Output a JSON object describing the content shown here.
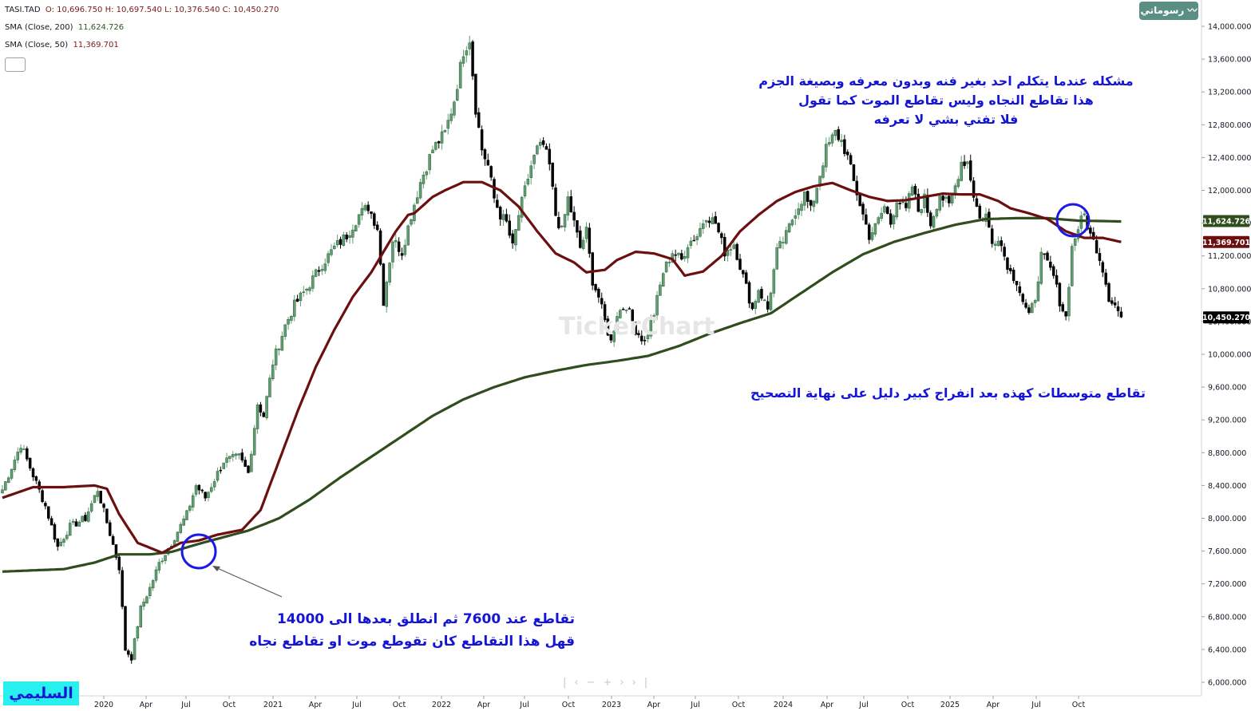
{
  "header": {
    "symbol": "TASI.TAD",
    "ohlc": "O: 10,696.750 H: 10,697.540 L: 10,376.540 C: 10,450.270",
    "sma200_label": "SMA (Close, 200)",
    "sma200_value": "11,624.726",
    "sma50_label": "SMA (Close, 50)",
    "sma50_value": "11,369.701"
  },
  "brand": "رسوماتي",
  "annotations": {
    "top_line1": "مشكله عندما يتكلم احد بغير فنه وبدون معرفه وبصيغة الجزم",
    "top_line2": "هذا تقاطع النجاه وليس تقاطع الموت كما تقول",
    "top_line3": "فلا تفتي بشي لا تعرفه",
    "middle": "تقاطع متوسطات كهذه بعد انفراج كبير دليل على نهاية التصحيح",
    "bottom_line1": "تقاطع عند 7600 ثم انطلق بعدها الى 14000",
    "bottom_line2": "قهل هذا التقاطع كان تقوطع موت او تقاطع نجاه"
  },
  "signature": "السليمي",
  "watermark": "TickerChart",
  "colors": {
    "up": "#5f9f72",
    "down": "#000000",
    "sma200": "#2f4d1d",
    "sma50": "#6b0f0f",
    "circle": "#1a1ae6",
    "text": "#1515d6",
    "last_price_tag": "#000000",
    "sma200_tag": "#2f4d1d",
    "sma50_tag": "#6b0f0f"
  },
  "chart_data": {
    "type": "candlestick",
    "ylim": [
      5900,
      14100
    ],
    "y_ticks": [
      "6,000.000",
      "6,400.000",
      "6,800.000",
      "7,200.000",
      "7,600.000",
      "8,000.000",
      "8,400.000",
      "8,800.000",
      "9,200.000",
      "9,600.000",
      "10,000.000",
      "10,400.000",
      "10,800.000",
      "11,200.000",
      "11,600.000",
      "12,000.000",
      "12,400.000",
      "12,800.000",
      "13,200.000",
      "13,600.000",
      "14,000.000"
    ],
    "x_ticks": [
      "2020",
      "Apr",
      "Jul",
      "Oct",
      "2021",
      "Apr",
      "Jul",
      "Oct",
      "2022",
      "Apr",
      "Jul",
      "Oct",
      "2023",
      "Apr",
      "Jul",
      "Oct",
      "2024",
      "Apr",
      "Jul",
      "Oct",
      "2025",
      "Apr",
      "Jul",
      "Oct"
    ],
    "price_tags": [
      {
        "label": "11,624.726",
        "value": 11624.726,
        "series": "SMA (Close, 200)"
      },
      {
        "label": "11,369.701",
        "value": 11369.701,
        "series": "SMA (Close, 50)"
      },
      {
        "label": "10,450.270",
        "value": 10450.27,
        "series": "TASI.TAD"
      }
    ],
    "close_anchors": [
      [
        0,
        8350
      ],
      [
        6,
        8900
      ],
      [
        14,
        8150
      ],
      [
        18,
        7650
      ],
      [
        22,
        7900
      ],
      [
        27,
        8000
      ],
      [
        31,
        8350
      ],
      [
        34,
        7950
      ],
      [
        38,
        7400
      ],
      [
        40,
        6400
      ],
      [
        42,
        6300
      ],
      [
        45,
        6900
      ],
      [
        48,
        7150
      ],
      [
        51,
        7450
      ],
      [
        55,
        7700
      ],
      [
        60,
        8050
      ],
      [
        63,
        8400
      ],
      [
        66,
        8250
      ],
      [
        72,
        8700
      ],
      [
        77,
        8750
      ],
      [
        80,
        8550
      ],
      [
        83,
        9400
      ],
      [
        85,
        9250
      ],
      [
        88,
        9900
      ],
      [
        92,
        10350
      ],
      [
        95,
        10600
      ],
      [
        99,
        10800
      ],
      [
        104,
        11100
      ],
      [
        108,
        11300
      ],
      [
        112,
        11450
      ],
      [
        116,
        11700
      ],
      [
        119,
        11800
      ],
      [
        122,
        11550
      ],
      [
        124,
        10650
      ],
      [
        127,
        11400
      ],
      [
        130,
        11250
      ],
      [
        133,
        11700
      ],
      [
        136,
        12100
      ],
      [
        140,
        12500
      ],
      [
        144,
        12700
      ],
      [
        147,
        13100
      ],
      [
        150,
        13700
      ],
      [
        152,
        13850
      ],
      [
        154,
        13000
      ],
      [
        156,
        12500
      ],
      [
        158,
        12300
      ],
      [
        160,
        11900
      ],
      [
        162,
        11700
      ],
      [
        164,
        11600
      ],
      [
        166,
        11300
      ],
      [
        168,
        11700
      ],
      [
        170,
        12000
      ],
      [
        172,
        12300
      ],
      [
        174,
        12500
      ],
      [
        176,
        12550
      ],
      [
        178,
        12300
      ],
      [
        180,
        11700
      ],
      [
        182,
        11500
      ],
      [
        184,
        11900
      ],
      [
        186,
        11600
      ],
      [
        188,
        11300
      ],
      [
        190,
        11500
      ],
      [
        192,
        10900
      ],
      [
        194,
        10700
      ],
      [
        196,
        10400
      ],
      [
        198,
        10150
      ],
      [
        200,
        10500
      ],
      [
        203,
        10600
      ],
      [
        206,
        10300
      ],
      [
        209,
        10150
      ],
      [
        212,
        10500
      ],
      [
        215,
        11000
      ],
      [
        218,
        11250
      ],
      [
        221,
        11150
      ],
      [
        223,
        11350
      ],
      [
        226,
        11450
      ],
      [
        229,
        11700
      ],
      [
        232,
        11600
      ],
      [
        235,
        11250
      ],
      [
        238,
        11350
      ],
      [
        241,
        10950
      ],
      [
        244,
        10550
      ],
      [
        246,
        10800
      ],
      [
        249,
        10550
      ],
      [
        252,
        11250
      ],
      [
        255,
        11450
      ],
      [
        258,
        11750
      ],
      [
        261,
        11950
      ],
      [
        263,
        11750
      ],
      [
        265,
        12050
      ],
      [
        268,
        12500
      ],
      [
        271,
        12700
      ],
      [
        273,
        12600
      ],
      [
        275,
        12400
      ],
      [
        277,
        12100
      ],
      [
        280,
        11700
      ],
      [
        282,
        11450
      ],
      [
        284,
        11550
      ],
      [
        287,
        11800
      ],
      [
        289,
        11600
      ],
      [
        291,
        11900
      ],
      [
        294,
        11750
      ],
      [
        296,
        12050
      ],
      [
        298,
        11750
      ],
      [
        300,
        11900
      ],
      [
        302,
        11600
      ],
      [
        305,
        11950
      ],
      [
        308,
        11800
      ],
      [
        310,
        12050
      ],
      [
        312,
        12350
      ],
      [
        314,
        12350
      ],
      [
        316,
        11950
      ],
      [
        318,
        11650
      ],
      [
        320,
        11700
      ],
      [
        322,
        11350
      ],
      [
        324,
        11450
      ],
      [
        326,
        11200
      ],
      [
        328,
        11000
      ],
      [
        330,
        10900
      ],
      [
        332,
        10650
      ],
      [
        334,
        10450
      ],
      [
        336,
        10700
      ],
      [
        338,
        11200
      ],
      [
        340,
        11100
      ],
      [
        342,
        10950
      ],
      [
        344,
        10650
      ],
      [
        346,
        10450
      ],
      [
        348,
        11300
      ],
      [
        350,
        11550
      ],
      [
        352,
        11700
      ],
      [
        354,
        11450
      ],
      [
        356,
        11300
      ],
      [
        358,
        11050
      ],
      [
        360,
        10700
      ],
      [
        362,
        10600
      ],
      [
        364,
        10450
      ]
    ],
    "sma200_anchors": [
      [
        0,
        7350
      ],
      [
        20,
        7380
      ],
      [
        30,
        7460
      ],
      [
        38,
        7560
      ],
      [
        48,
        7560
      ],
      [
        55,
        7590
      ],
      [
        65,
        7700
      ],
      [
        80,
        7850
      ],
      [
        90,
        8000
      ],
      [
        100,
        8230
      ],
      [
        110,
        8500
      ],
      [
        120,
        8750
      ],
      [
        130,
        9000
      ],
      [
        140,
        9250
      ],
      [
        150,
        9450
      ],
      [
        160,
        9600
      ],
      [
        170,
        9720
      ],
      [
        180,
        9800
      ],
      [
        190,
        9870
      ],
      [
        200,
        9920
      ],
      [
        210,
        9980
      ],
      [
        220,
        10100
      ],
      [
        230,
        10250
      ],
      [
        240,
        10380
      ],
      [
        250,
        10500
      ],
      [
        260,
        10750
      ],
      [
        270,
        11000
      ],
      [
        280,
        11220
      ],
      [
        290,
        11370
      ],
      [
        300,
        11480
      ],
      [
        310,
        11580
      ],
      [
        320,
        11650
      ],
      [
        330,
        11660
      ],
      [
        340,
        11660
      ],
      [
        350,
        11630
      ],
      [
        358,
        11625
      ],
      [
        364,
        11620
      ]
    ],
    "sma50_anchors": [
      [
        0,
        8250
      ],
      [
        10,
        8380
      ],
      [
        20,
        8380
      ],
      [
        30,
        8400
      ],
      [
        34,
        8360
      ],
      [
        38,
        8050
      ],
      [
        44,
        7700
      ],
      [
        52,
        7580
      ],
      [
        58,
        7700
      ],
      [
        64,
        7730
      ],
      [
        70,
        7800
      ],
      [
        78,
        7860
      ],
      [
        84,
        8100
      ],
      [
        90,
        8700
      ],
      [
        96,
        9300
      ],
      [
        102,
        9850
      ],
      [
        108,
        10300
      ],
      [
        114,
        10700
      ],
      [
        120,
        11000
      ],
      [
        124,
        11250
      ],
      [
        128,
        11500
      ],
      [
        132,
        11700
      ],
      [
        134,
        11720
      ],
      [
        140,
        11920
      ],
      [
        144,
        12000
      ],
      [
        150,
        12100
      ],
      [
        156,
        12100
      ],
      [
        162,
        12000
      ],
      [
        168,
        11800
      ],
      [
        174,
        11500
      ],
      [
        180,
        11230
      ],
      [
        186,
        11120
      ],
      [
        190,
        11000
      ],
      [
        196,
        11030
      ],
      [
        200,
        11150
      ],
      [
        206,
        11250
      ],
      [
        212,
        11230
      ],
      [
        218,
        11160
      ],
      [
        222,
        10960
      ],
      [
        228,
        11010
      ],
      [
        234,
        11200
      ],
      [
        240,
        11500
      ],
      [
        246,
        11700
      ],
      [
        252,
        11870
      ],
      [
        258,
        11980
      ],
      [
        264,
        12050
      ],
      [
        270,
        12090
      ],
      [
        276,
        12000
      ],
      [
        282,
        11920
      ],
      [
        288,
        11870
      ],
      [
        294,
        11880
      ],
      [
        300,
        11920
      ],
      [
        306,
        11960
      ],
      [
        312,
        11950
      ],
      [
        318,
        11950
      ],
      [
        324,
        11870
      ],
      [
        328,
        11780
      ],
      [
        334,
        11720
      ],
      [
        340,
        11650
      ],
      [
        346,
        11500
      ],
      [
        352,
        11420
      ],
      [
        358,
        11420
      ],
      [
        364,
        11370
      ]
    ]
  }
}
